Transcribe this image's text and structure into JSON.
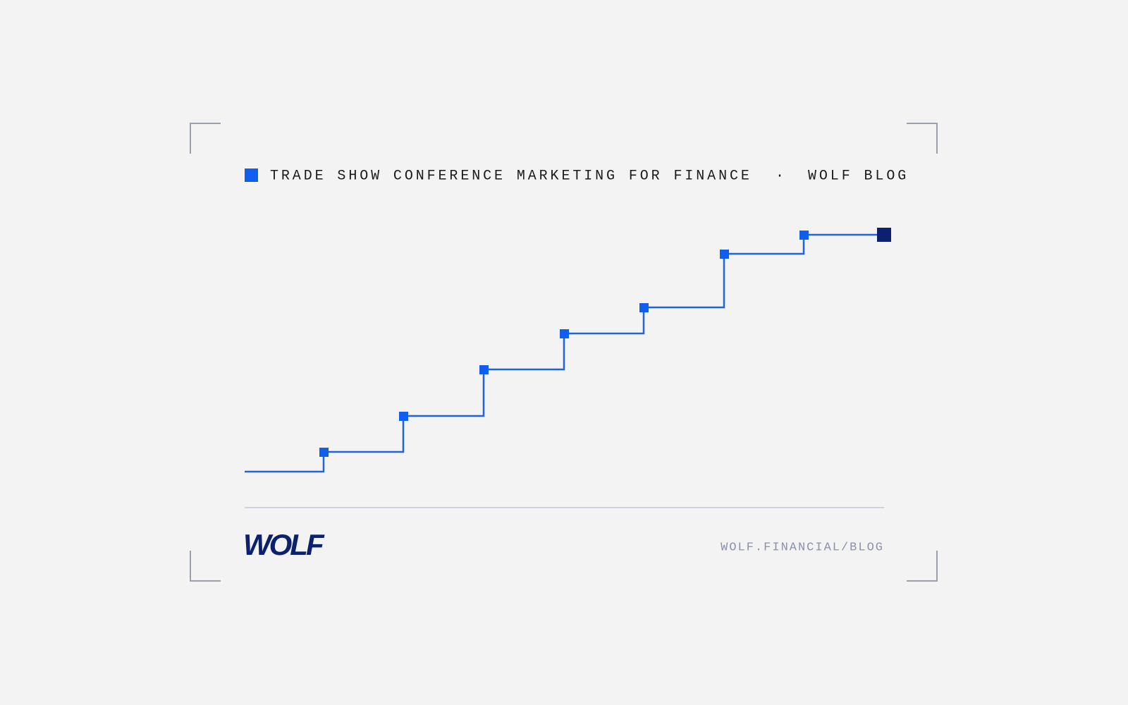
{
  "header": {
    "title": "TRADE SHOW CONFERENCE MARKETING FOR FINANCE",
    "separator": "·",
    "blog": "WOLF BLOG"
  },
  "footer": {
    "logo": "WOLF",
    "url": "WOLF.FINANCIAL/BLOG"
  }
}
